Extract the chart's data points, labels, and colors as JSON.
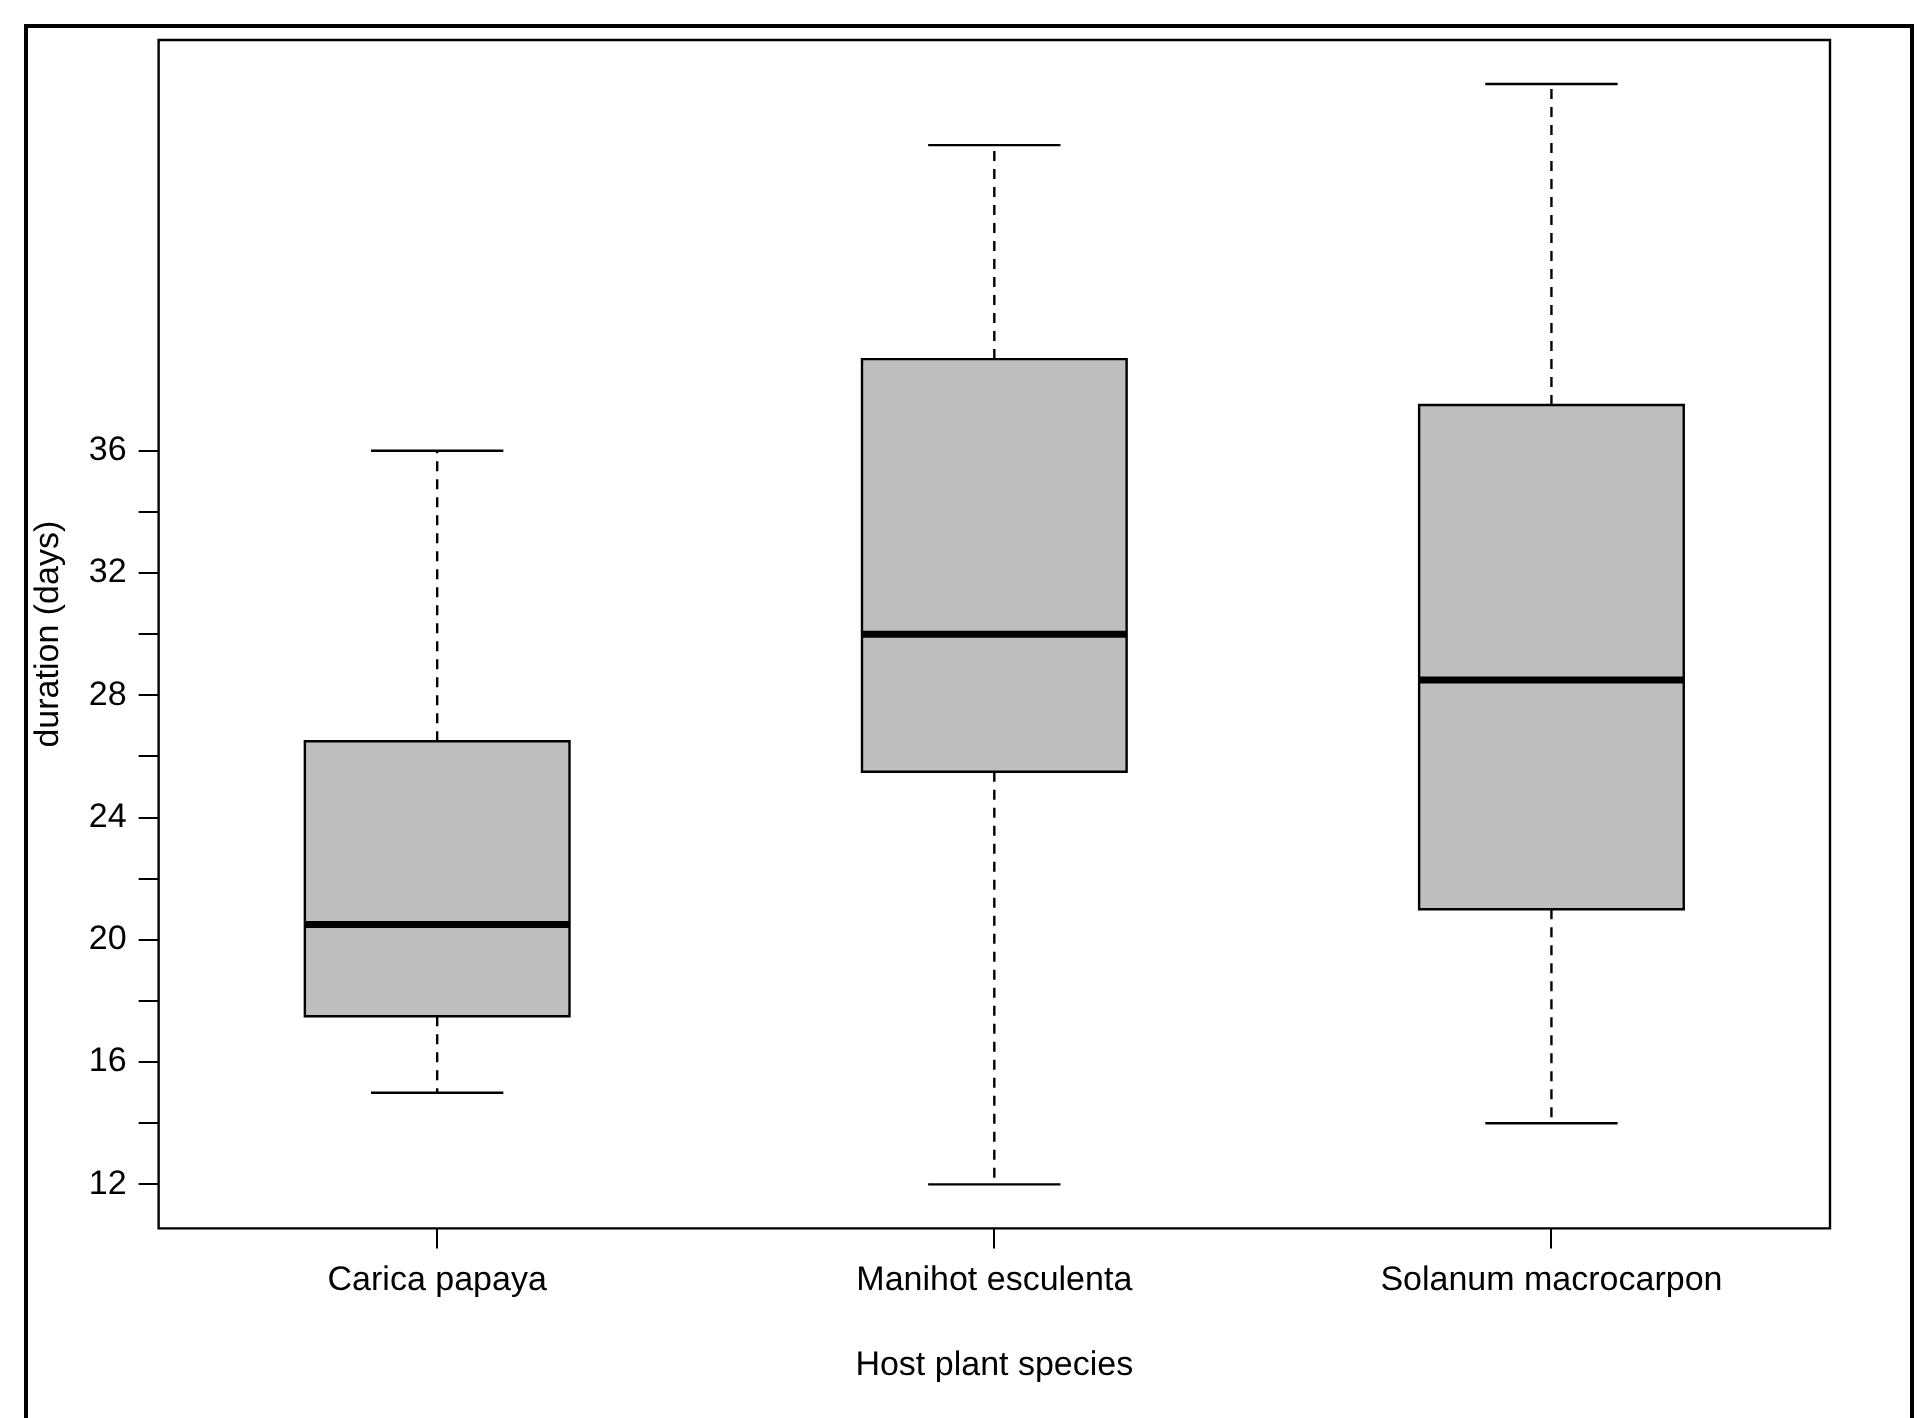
{
  "chart_data": {
    "type": "box",
    "xlabel": "Host plant species",
    "ylabel": "duration (days)",
    "categories": [
      "Carica papaya",
      "Manihot esculenta",
      "Solanum macrocarpon"
    ],
    "color": "#bebebe",
    "boxes": [
      {
        "low": 15,
        "q1": 17.5,
        "median": 20.5,
        "q3": 26.5,
        "high": 36
      },
      {
        "low": 12,
        "q1": 25.5,
        "median": 30,
        "q3": 39,
        "high": 46
      },
      {
        "low": 14,
        "q1": 21,
        "median": 28.5,
        "q3": 37.5,
        "high": 48
      }
    ],
    "ylim": [
      10.56,
      49.44
    ],
    "yticks": [
      12,
      {
        "value": 14,
        "label": null
      },
      16,
      {
        "value": 18,
        "label": null
      },
      20,
      {
        "value": 22,
        "label": null
      },
      24,
      {
        "value": 26,
        "label": null
      },
      28,
      {
        "value": 30,
        "label": null
      },
      32,
      {
        "value": 34,
        "label": null
      },
      36
    ],
    "grid": false,
    "legend": false
  }
}
